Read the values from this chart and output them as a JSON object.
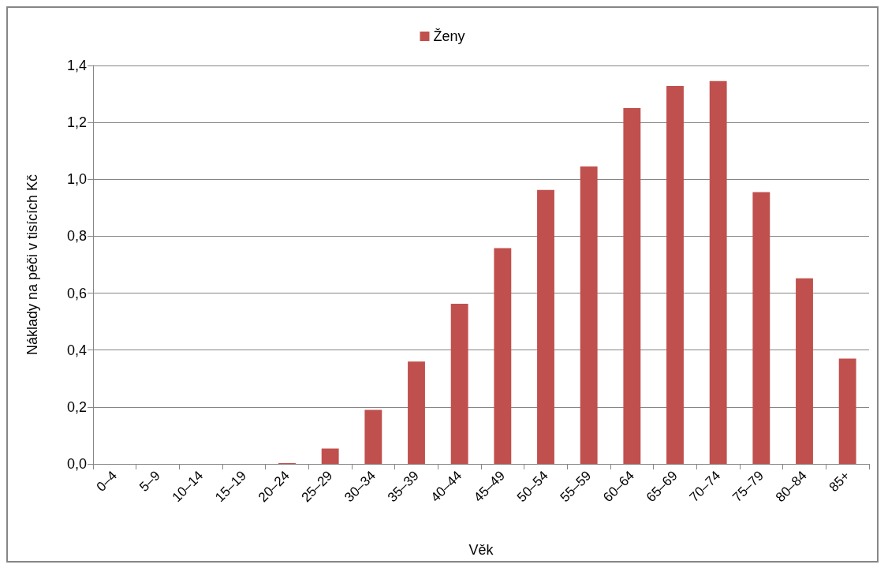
{
  "chart_data": {
    "type": "bar",
    "xlabel": "Věk",
    "ylabel": "Náklady na péči v tisících Kč",
    "categories": [
      "0–4",
      "5–9",
      "10–14",
      "15–19",
      "20–24",
      "25–29",
      "30–34",
      "35–39",
      "40–44",
      "45–49",
      "50–54",
      "55–59",
      "60–64",
      "65–69",
      "70–74",
      "75–79",
      "80–84",
      "85+"
    ],
    "series": [
      {
        "name": "Ženy",
        "color": "#c0504d",
        "values": [
          0,
          0,
          0,
          0,
          0.003,
          0.054,
          0.19,
          0.36,
          0.563,
          0.758,
          0.963,
          1.045,
          1.25,
          1.328,
          1.345,
          0.955,
          0.652,
          0.37
        ]
      }
    ],
    "ylim": [
      0,
      1.4
    ],
    "yticks": [
      {
        "value": 0,
        "label": "0,0"
      },
      {
        "value": 0.2,
        "label": "0,2"
      },
      {
        "value": 0.4,
        "label": "0,4"
      },
      {
        "value": 0.6,
        "label": "0,6"
      },
      {
        "value": 0.8,
        "label": "0,8"
      },
      {
        "value": 1,
        "label": "1,0"
      },
      {
        "value": 1.2,
        "label": "1,2"
      },
      {
        "value": 1.4,
        "label": "1,4"
      }
    ],
    "grid": "y",
    "legend": "top"
  }
}
